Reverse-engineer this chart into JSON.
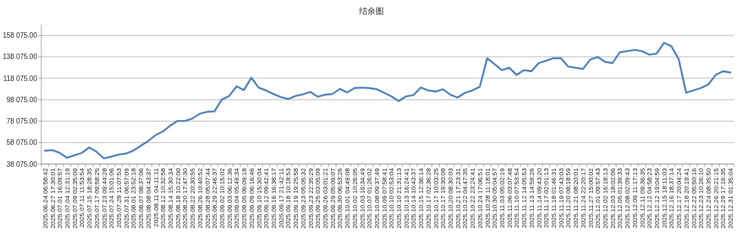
{
  "chart_data": {
    "type": "line",
    "title": "结余图",
    "categories": [
      "2025.06.24 06:58:42",
      "2025.06.27 17:30:01",
      "2025.07.01 16:09:57",
      "2025.07.04 12:31:19",
      "2025.07.09 02:35:09",
      "2025.07.11 11:53:54",
      "2025.07.15 18:28:35",
      "2025.07.17 09:58:25",
      "2025.07.23 09:44:28",
      "2025.07.24 15:01:06",
      "2025.07.29 11:07:53",
      "2025.07.31 06:57:09",
      "2025.08.01 23:52:18",
      "2025.08.07 08:37:06",
      "2025.08.08 04:43:37",
      "2025.08.11 04:11:11",
      "2025.08.12 10:32:58",
      "2025.08.14 15:30:34",
      "2025.08.18 10:22:00",
      "2025.08.20 17:47:30",
      "2025.08.22 20:30:55",
      "2025.08.26 10:40:52",
      "2025.08.28 05:07:44",
      "2025.08.29 22:46:37",
      "2025.09.02 10:15:02",
      "2025.09.03 06:12:36",
      "2025.09.04 05:49:34",
      "2025.09.05 06:09:18",
      "2025.09.09 06:16:46",
      "2025.09.10 15:30:04",
      "2025.09.12 09:42:41",
      "2025.09.16 16:38:17",
      "2025.09.17 21:42:11",
      "2025.09.18 10:18:53",
      "2025.09.19 19:25:58",
      "2025.09.23 05:05:32",
      "2025.09.23 22:35:29",
      "2025.09.25 03:05:09",
      "2025.09.26 03:01:21",
      "2025.09.29 05:09:07",
      "2025.09.30 06:53:26",
      "2025.10.01 04:49:08",
      "2025.10.02 10:26:05",
      "2025.10.03 16:34:49",
      "2025.10.07 01:26:02",
      "2025.10.08 09:37:49",
      "2025.10.09 07:58:41",
      "2025.10.10 02:53:04",
      "2025.10.10 21:31:13",
      "2025.10.13 16:24:41",
      "2025.10.14 10:43:37",
      "2025.10.15 12:36:14",
      "2025.10.17 02:36:28",
      "2025.10.17 10:03:25",
      "2025.10.17 19:30:08",
      "2025.10.20 08:30:03",
      "2025.10.21 17:23:31",
      "2025.10.22 04:47:35",
      "2025.10.22 23:24:41",
      "2025.10.24 17:06:51",
      "2025.10.28 11:18:01",
      "2025.10.30 05:04:57",
      "2025.11.03 05:02:19",
      "2025.11.06 03:07:48",
      "2025.11.10 07:53:54",
      "2025.11.12 14:05:53",
      "2025.11.13 14:59:26",
      "2025.11.14 09:43:20",
      "2025.11.17 02:01:13",
      "2025.11.18 01:46:31",
      "2025.11.19 07:43:03",
      "2025.11.20 08:18:59",
      "2025.11.21 08:20:01",
      "2025.11.24 22:20:17",
      "2025.11.27 15:00:02",
      "2025.12.01 09:57:43",
      "2025.12.02 16:18:13",
      "2025.12.03 18:02:06",
      "2025.12.05 01:39:33",
      "2025.12.08 02:09:43",
      "2025.12.09 11:17:13",
      "2025.12.11 09:36:35",
      "2025.12.12 04:58:23",
      "2025.12.12 19:04:59",
      "2025.12.15 18:11:03",
      "2025.12.16 18:37:14",
      "2025.12.17 20:04:24",
      "2025.12.18 20:19:41",
      "2025.12.22 05:50:16",
      "2025.12.23 10:26:10",
      "2025.12.24 08:35:50",
      "2025.12.26 20:21:15",
      "2025.12.29 17:16:35",
      "2025.12.31 01:35:04"
    ],
    "series": [
      {
        "color": "#4a7ebb",
        "values": [
          50500,
          51000,
          48500,
          43800,
          46200,
          48400,
          53500,
          49500,
          43300,
          45000,
          46900,
          47800,
          50600,
          55100,
          59500,
          65000,
          68400,
          73900,
          78300,
          78300,
          80500,
          85000,
          86800,
          87200,
          98300,
          101600,
          110500,
          107100,
          118600,
          109300,
          106700,
          103400,
          100500,
          98700,
          101600,
          103100,
          105400,
          100900,
          102700,
          103400,
          108200,
          104900,
          108900,
          109300,
          108900,
          107900,
          104600,
          101200,
          96800,
          101200,
          102400,
          109500,
          106800,
          105700,
          107900,
          102800,
          100100,
          104600,
          106800,
          110100,
          136800,
          131200,
          125700,
          127900,
          121200,
          125700,
          124600,
          132300,
          134500,
          136800,
          136800,
          129000,
          127900,
          126800,
          135600,
          137900,
          133400,
          132300,
          142300,
          143400,
          144500,
          143400,
          140100,
          141200,
          151200,
          147900,
          135600,
          104600,
          106800,
          109000,
          112300,
          121200,
          124600,
          123500
        ]
      }
    ],
    "ylim": [
      38075,
      168075
    ],
    "yticks": [
      {
        "value": 38075,
        "label": "38 075.00"
      },
      {
        "value": 58075,
        "label": "58 075.00"
      },
      {
        "value": 78075,
        "label": "78 075.00"
      },
      {
        "value": 98075,
        "label": "98 075.00"
      },
      {
        "value": 118075,
        "label": "118 075.00"
      },
      {
        "value": 138075,
        "label": "138 075.00"
      },
      {
        "value": 158075,
        "label": "158 075.00"
      }
    ],
    "grid": "y"
  }
}
